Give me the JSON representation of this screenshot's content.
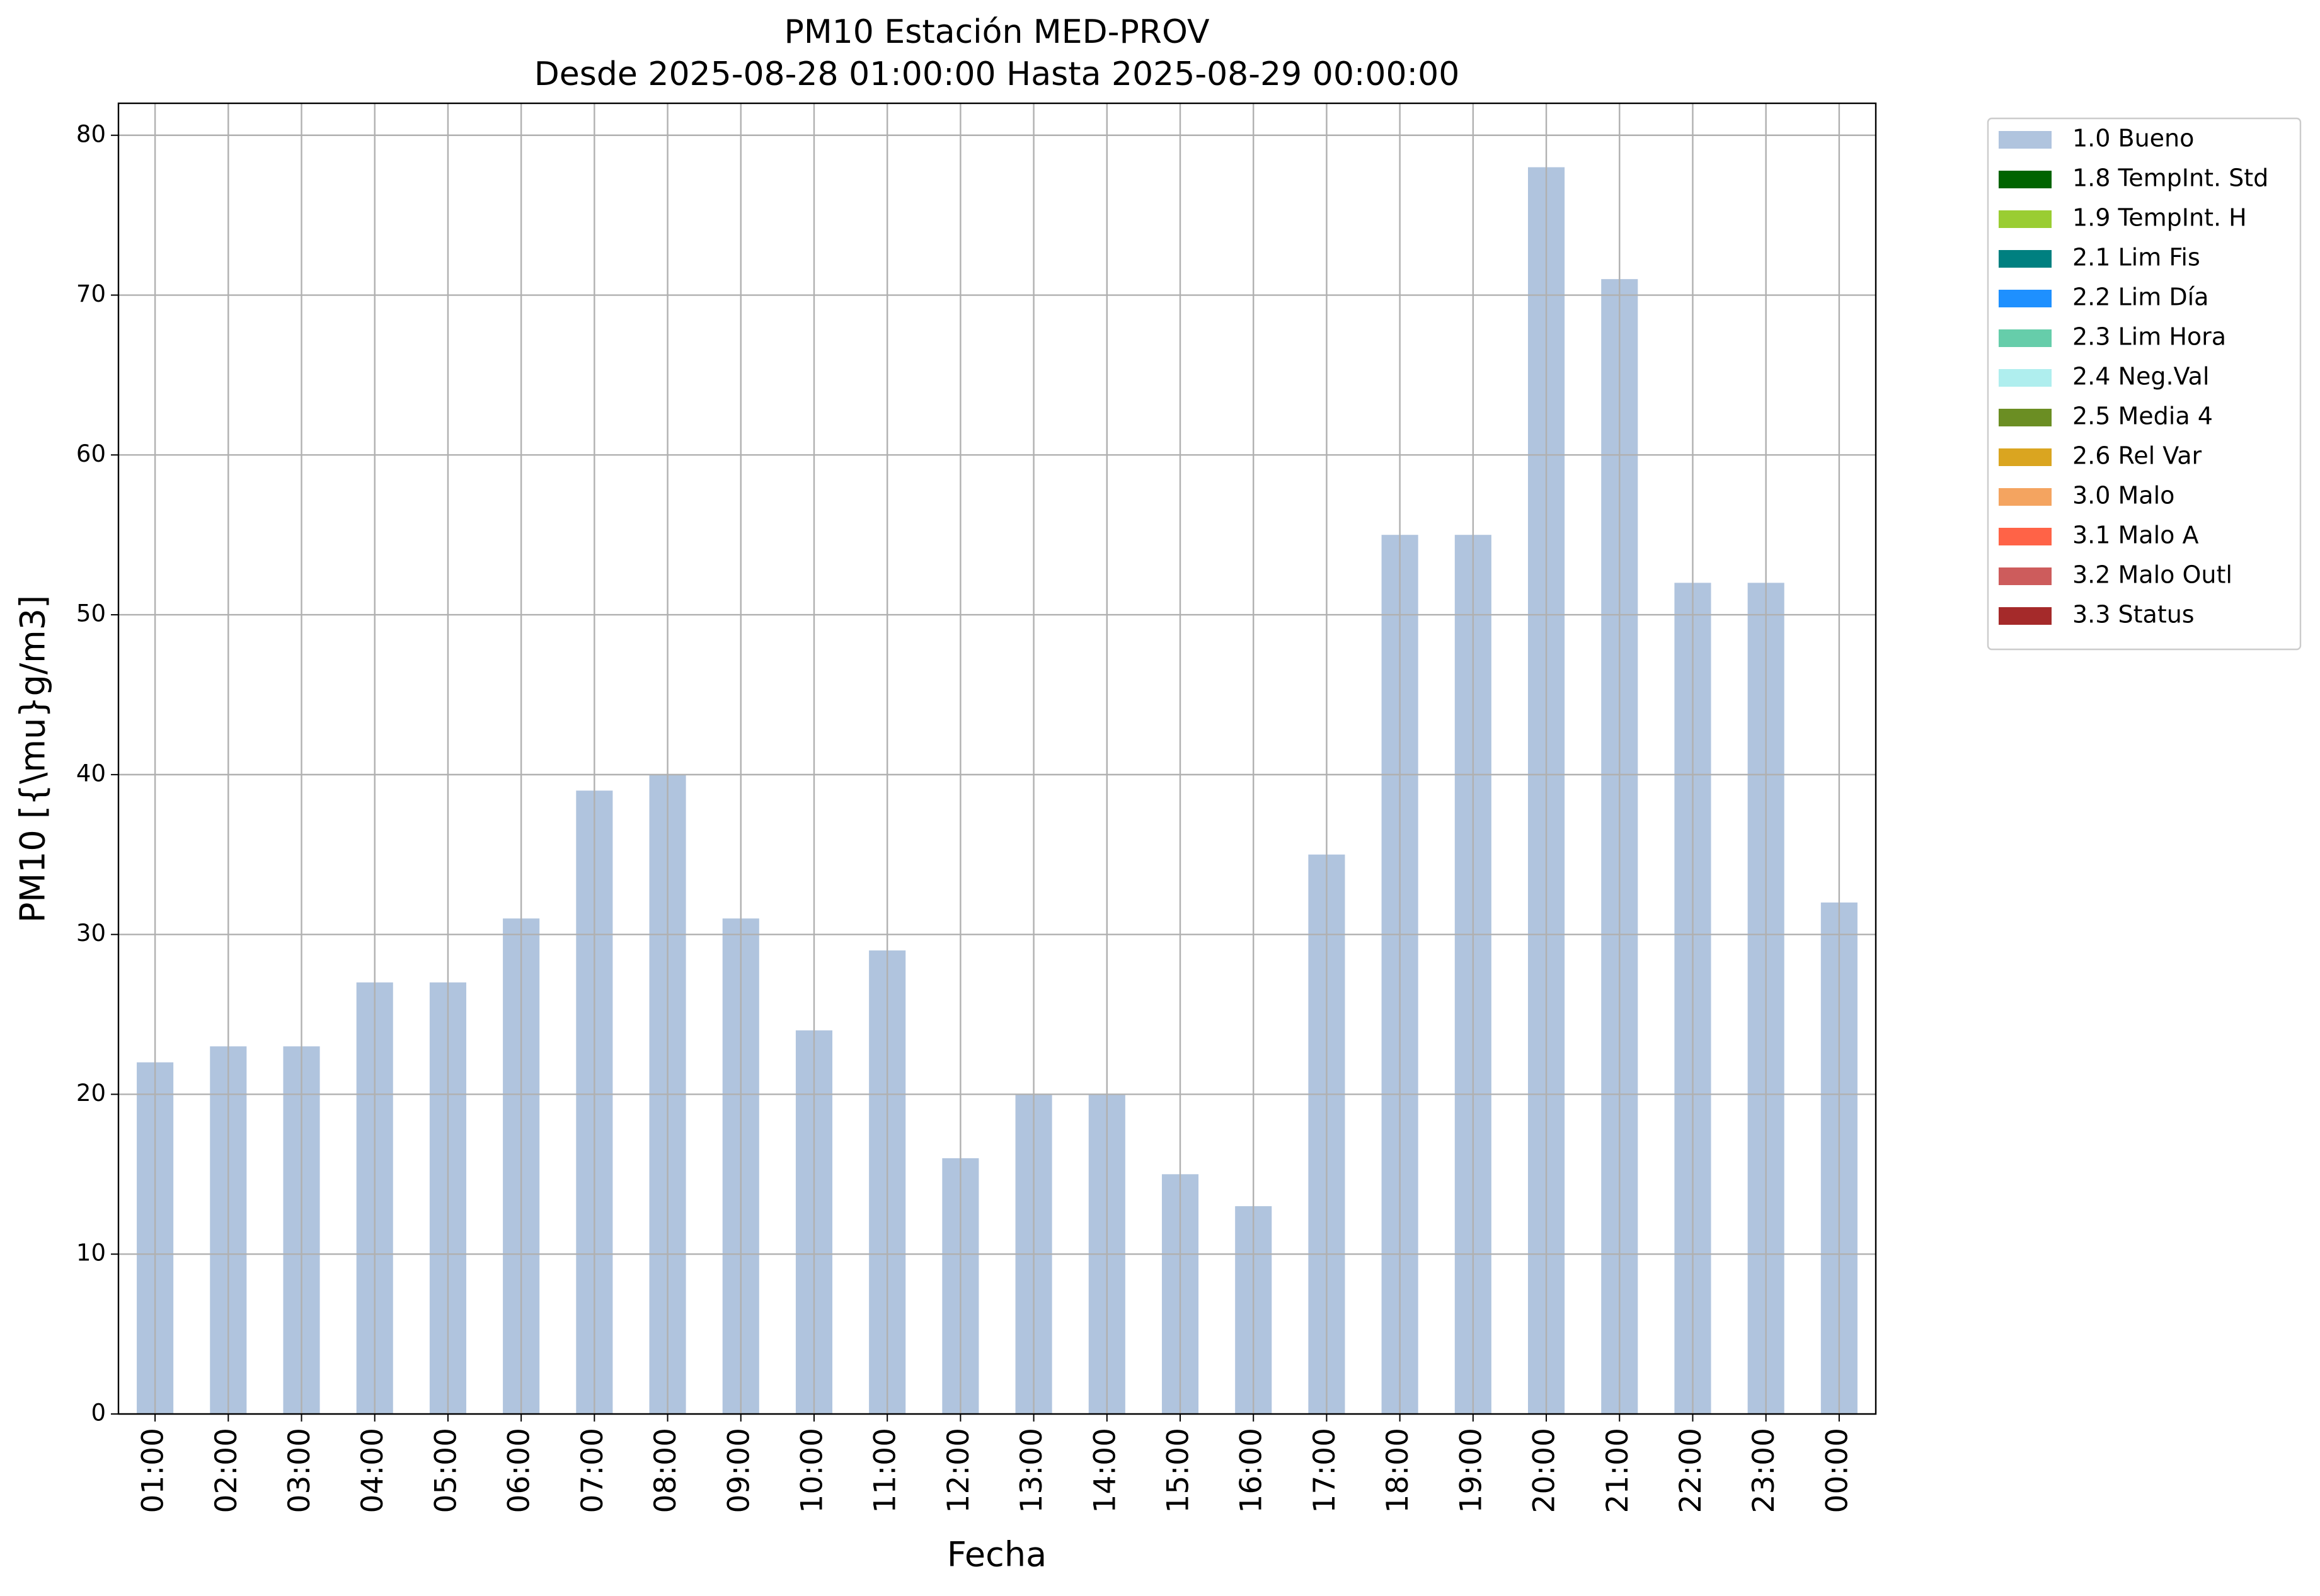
{
  "chart_data": {
    "type": "bar",
    "stacked": true,
    "title": "PM10 Estación MED-PROV",
    "subtitle": "Desde 2025-08-28 01:00:00 Hasta 2025-08-29 00:00:00",
    "x_label": "Fecha",
    "y_label": "PM10 [{\\mu}g/m3]",
    "categories": [
      "01:00",
      "02:00",
      "03:00",
      "04:00",
      "05:00",
      "06:00",
      "07:00",
      "08:00",
      "09:00",
      "10:00",
      "11:00",
      "12:00",
      "13:00",
      "14:00",
      "15:00",
      "16:00",
      "17:00",
      "18:00",
      "19:00",
      "20:00",
      "21:00",
      "22:00",
      "23:00",
      "00:00"
    ],
    "series": [
      {
        "name": "1.0 Bueno",
        "color": "#b0c4de",
        "values": [
          22,
          23,
          23,
          27,
          27,
          31,
          39,
          40,
          31,
          24,
          29,
          16,
          20,
          20,
          15,
          13,
          35,
          55,
          55,
          78,
          71,
          52,
          52,
          32
        ]
      },
      {
        "name": "1.8 TempInt. Std",
        "color": "#006400",
        "values": [
          0,
          0,
          0,
          0,
          0,
          0,
          0,
          0,
          0,
          0,
          0,
          0,
          0,
          0,
          0,
          0,
          0,
          0,
          0,
          0,
          0,
          0,
          0,
          0
        ]
      },
      {
        "name": "1.9 TempInt. H",
        "color": "#9acd32",
        "values": [
          0,
          0,
          0,
          0,
          0,
          0,
          0,
          0,
          0,
          0,
          0,
          0,
          0,
          0,
          0,
          0,
          0,
          0,
          0,
          0,
          0,
          0,
          0,
          0
        ]
      },
      {
        "name": "2.1 Lim Fis",
        "color": "#008080",
        "values": [
          0,
          0,
          0,
          0,
          0,
          0,
          0,
          0,
          0,
          0,
          0,
          0,
          0,
          0,
          0,
          0,
          0,
          0,
          0,
          0,
          0,
          0,
          0,
          0
        ]
      },
      {
        "name": "2.2 Lim Día",
        "color": "#1e90ff",
        "values": [
          0,
          0,
          0,
          0,
          0,
          0,
          0,
          0,
          0,
          0,
          0,
          0,
          0,
          0,
          0,
          0,
          0,
          0,
          0,
          0,
          0,
          0,
          0,
          0
        ]
      },
      {
        "name": "2.3 Lim Hora",
        "color": "#66cdaa",
        "values": [
          0,
          0,
          0,
          0,
          0,
          0,
          0,
          0,
          0,
          0,
          0,
          0,
          0,
          0,
          0,
          0,
          0,
          0,
          0,
          0,
          0,
          0,
          0,
          0
        ]
      },
      {
        "name": "2.4 Neg.Val",
        "color": "#afeeee",
        "values": [
          0,
          0,
          0,
          0,
          0,
          0,
          0,
          0,
          0,
          0,
          0,
          0,
          0,
          0,
          0,
          0,
          0,
          0,
          0,
          0,
          0,
          0,
          0,
          0
        ]
      },
      {
        "name": "2.5 Media 4",
        "color": "#6b8e23",
        "values": [
          0,
          0,
          0,
          0,
          0,
          0,
          0,
          0,
          0,
          0,
          0,
          0,
          0,
          0,
          0,
          0,
          0,
          0,
          0,
          0,
          0,
          0,
          0,
          0
        ]
      },
      {
        "name": "2.6 Rel Var",
        "color": "#daa520",
        "values": [
          0,
          0,
          0,
          0,
          0,
          0,
          0,
          0,
          0,
          0,
          0,
          0,
          0,
          0,
          0,
          0,
          0,
          0,
          0,
          0,
          0,
          0,
          0,
          0
        ]
      },
      {
        "name": "3.0 Malo",
        "color": "#f4a460",
        "values": [
          0,
          0,
          0,
          0,
          0,
          0,
          0,
          0,
          0,
          0,
          0,
          0,
          0,
          0,
          0,
          0,
          0,
          0,
          0,
          0,
          0,
          0,
          0,
          0
        ]
      },
      {
        "name": "3.1 Malo A",
        "color": "#ff6347",
        "values": [
          0,
          0,
          0,
          0,
          0,
          0,
          0,
          0,
          0,
          0,
          0,
          0,
          0,
          0,
          0,
          0,
          0,
          0,
          0,
          0,
          0,
          0,
          0,
          0
        ]
      },
      {
        "name": "3.2 Malo Outl",
        "color": "#cd5c5c",
        "values": [
          0,
          0,
          0,
          0,
          0,
          0,
          0,
          0,
          0,
          0,
          0,
          0,
          0,
          0,
          0,
          0,
          0,
          0,
          0,
          0,
          0,
          0,
          0,
          0
        ]
      },
      {
        "name": "3.3 Status",
        "color": "#a52a2a",
        "values": [
          0,
          0,
          0,
          0,
          0,
          0,
          0,
          0,
          0,
          0,
          0,
          0,
          0,
          0,
          0,
          0,
          0,
          0,
          0,
          0,
          0,
          0,
          0,
          0
        ]
      }
    ],
    "ylim": [
      0,
      82
    ],
    "yticks": [
      0,
      10,
      20,
      30,
      40,
      50,
      60,
      70,
      80
    ],
    "grid": true,
    "legend": "outside right"
  }
}
